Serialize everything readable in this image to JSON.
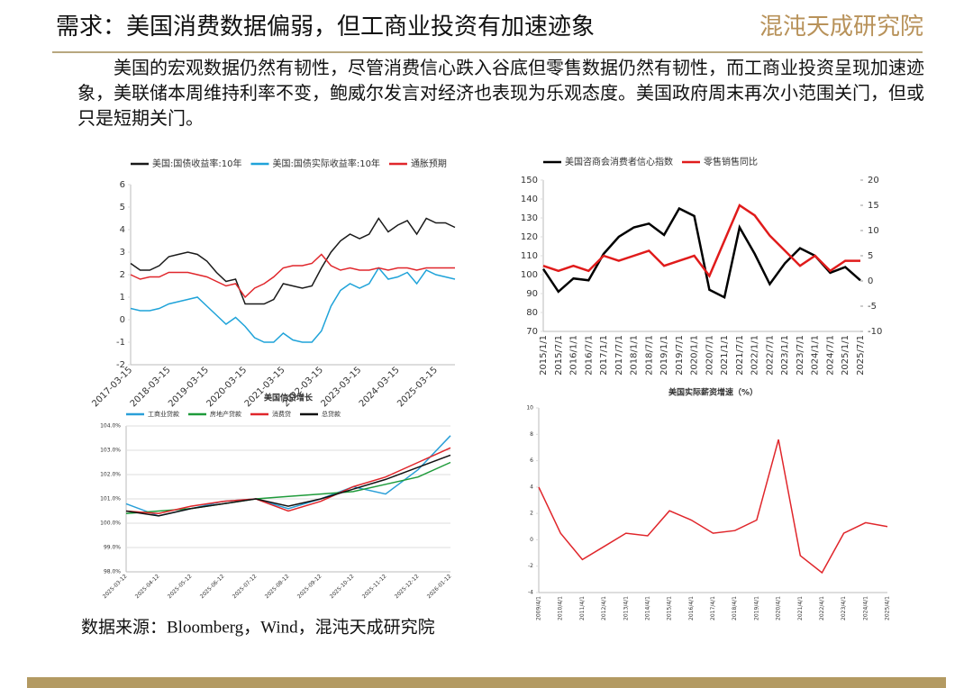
{
  "header": {
    "title": "需求：美国消费数据偏弱，但工商业投资有加速迹象",
    "logo": "混沌天成研究院"
  },
  "body": "美国的宏观数据仍然有韧性，尽管消费信心跌入谷底但零售数据仍然有韧性，而工商业投资呈现加速迹象，美联储本周维持利率不变，鲍威尔发言对经济也表现为乐观态度。美国政府周末再次小范围关门，但或只是短期关门。",
  "source": "数据来源：Bloomberg，Wind，混沌天成研究院",
  "chart_data": [
    {
      "type": "line",
      "legend": "top",
      "categories": [
        "2017-03-15",
        null,
        null,
        null,
        "2018-03-15",
        null,
        null,
        null,
        "2019-03-15",
        null,
        null,
        null,
        "2020-03-15",
        null,
        null,
        null,
        "2021-03-15",
        null,
        null,
        null,
        "2022-03-15",
        null,
        null,
        null,
        "2023-03-15",
        null,
        null,
        null,
        "2024-03-15",
        null,
        null,
        null,
        "2025-03-15",
        null,
        null
      ],
      "ylim": [
        -2,
        6
      ],
      "yticks": [
        -2,
        -1,
        0,
        1,
        2,
        3,
        4,
        5,
        6
      ],
      "series": [
        {
          "name": "美国:国债收益率:10年",
          "color": "#1a1a1a",
          "values": [
            2.5,
            2.2,
            2.2,
            2.4,
            2.8,
            2.9,
            3.0,
            2.9,
            2.6,
            2.1,
            1.7,
            1.8,
            0.7,
            0.7,
            0.7,
            0.9,
            1.6,
            1.5,
            1.4,
            1.5,
            2.3,
            3.0,
            3.5,
            3.8,
            3.6,
            3.8,
            4.5,
            3.9,
            4.2,
            4.4,
            3.8,
            4.5,
            4.3,
            4.3,
            4.1
          ]
        },
        {
          "name": "美国:国债实际收益率:10年",
          "color": "#1fa3d9",
          "values": [
            0.5,
            0.4,
            0.4,
            0.5,
            0.7,
            0.8,
            0.9,
            1.0,
            0.6,
            0.2,
            -0.2,
            0.1,
            -0.3,
            -0.8,
            -1.0,
            -1.0,
            -0.6,
            -0.9,
            -1.0,
            -1.0,
            -0.5,
            0.6,
            1.3,
            1.6,
            1.4,
            1.6,
            2.3,
            1.8,
            1.9,
            2.1,
            1.6,
            2.2,
            2.0,
            1.9,
            1.8
          ]
        },
        {
          "name": "通胀预期",
          "color": "#e0262b",
          "values": [
            2.0,
            1.8,
            1.9,
            1.9,
            2.1,
            2.1,
            2.1,
            2.0,
            1.9,
            1.7,
            1.5,
            1.6,
            1.0,
            1.4,
            1.6,
            1.9,
            2.3,
            2.4,
            2.4,
            2.5,
            2.9,
            2.4,
            2.2,
            2.3,
            2.2,
            2.2,
            2.3,
            2.2,
            2.3,
            2.3,
            2.2,
            2.3,
            2.3,
            2.3,
            2.3
          ]
        }
      ]
    },
    {
      "type": "line",
      "legend": "top",
      "categories": [
        "2015/1/1",
        "2015/7/1",
        "2016/1/1",
        "2016/7/1",
        "2017/1/1",
        "2017/7/1",
        "2018/1/1",
        "2018/7/1",
        "2019/1/1",
        "2019/7/1",
        "2020/1/1",
        "2020/7/1",
        "2021/1/1",
        "2021/7/1",
        "2022/1/1",
        "2022/7/1",
        "2023/1/1",
        "2023/7/1",
        "2024/1/1",
        "2024/7/1",
        "2025/1/1",
        "2025/7/1"
      ],
      "ylim": [
        70,
        150
      ],
      "yticks": [
        70,
        80,
        90,
        100,
        110,
        120,
        130,
        140,
        150
      ],
      "y2lim": [
        -10,
        20
      ],
      "y2ticks": [
        -10,
        -5,
        0,
        5,
        10,
        15,
        20
      ],
      "series": [
        {
          "name": "美国咨商会消费者信心指数",
          "color": "#000000",
          "values": [
            103,
            91,
            98,
            97,
            111,
            120,
            125,
            127,
            121,
            135,
            131,
            92,
            88,
            125,
            111,
            95,
            106,
            114,
            110,
            101,
            104,
            97
          ]
        },
        {
          "name": "零售销售同比",
          "color": "#e01b1b",
          "axis": "y2",
          "values": [
            3,
            2,
            3,
            2,
            5,
            4,
            5,
            6,
            3,
            4,
            5,
            1,
            8,
            15,
            13,
            9,
            6,
            3,
            5,
            2,
            4,
            4
          ]
        }
      ]
    },
    {
      "type": "line",
      "title": "美国信贷增长",
      "legend": "top",
      "grid": true,
      "categories": [
        "2025-03-12",
        "2025-04-12",
        "2025-05-12",
        "2025-06-12",
        "2025-07-12",
        "2025-08-12",
        "2025-09-12",
        "2025-10-12",
        "2025-11-12",
        "2025-12-12",
        "2026-01-12"
      ],
      "ylim": [
        98,
        104
      ],
      "yticks": [
        {
          "value": 98,
          "label": "98.0%"
        },
        {
          "value": 99,
          "label": "99.0%"
        },
        {
          "value": 100,
          "label": "100.0%"
        },
        {
          "value": 101,
          "label": "101.0%"
        },
        {
          "value": 102,
          "label": "102.0%"
        },
        {
          "value": 103,
          "label": "103.0%"
        },
        {
          "value": 104,
          "label": "104.0%"
        }
      ],
      "series": [
        {
          "name": "工商业贷款",
          "color": "#2a9fd8",
          "values": [
            100.8,
            100.3,
            100.6,
            100.9,
            101.0,
            100.6,
            101.0,
            101.5,
            101.2,
            102.2,
            103.6
          ]
        },
        {
          "name": "房地产贷款",
          "color": "#1e9b3a",
          "values": [
            100.4,
            100.5,
            100.6,
            100.8,
            101.0,
            101.1,
            101.2,
            101.3,
            101.6,
            101.9,
            102.5
          ]
        },
        {
          "name": "消费贷",
          "color": "#e0262b",
          "values": [
            100.5,
            100.4,
            100.7,
            100.9,
            101.0,
            100.5,
            100.9,
            101.5,
            101.9,
            102.5,
            103.1
          ]
        },
        {
          "name": "总贷款",
          "color": "#111111",
          "values": [
            100.5,
            100.3,
            100.6,
            100.8,
            101.0,
            100.7,
            101.0,
            101.4,
            101.8,
            102.3,
            102.8
          ]
        }
      ]
    },
    {
      "type": "line",
      "title": "美国实际薪资增速（%）",
      "categories": [
        "2009/4/1",
        "2010/4/1",
        "2011/4/1",
        "2012/4/1",
        "2013/4/1",
        "2014/4/1",
        "2015/4/1",
        "2016/4/1",
        "2017/4/1",
        "2018/4/1",
        "2019/4/1",
        "2020/4/1",
        "2021/4/1",
        "2022/4/1",
        "2023/4/1",
        "2024/4/1",
        "2025/4/1"
      ],
      "ylim": [
        -4,
        10
      ],
      "yticks": [
        -4,
        -2,
        0,
        2,
        4,
        6,
        8,
        10
      ],
      "series": [
        {
          "color": "#e0262b",
          "values": [
            4.0,
            0.5,
            -1.5,
            -0.5,
            0.5,
            0.3,
            2.2,
            1.5,
            0.5,
            0.7,
            1.5,
            7.6,
            -1.2,
            -2.5,
            0.5,
            1.3,
            1.0
          ]
        }
      ]
    }
  ]
}
